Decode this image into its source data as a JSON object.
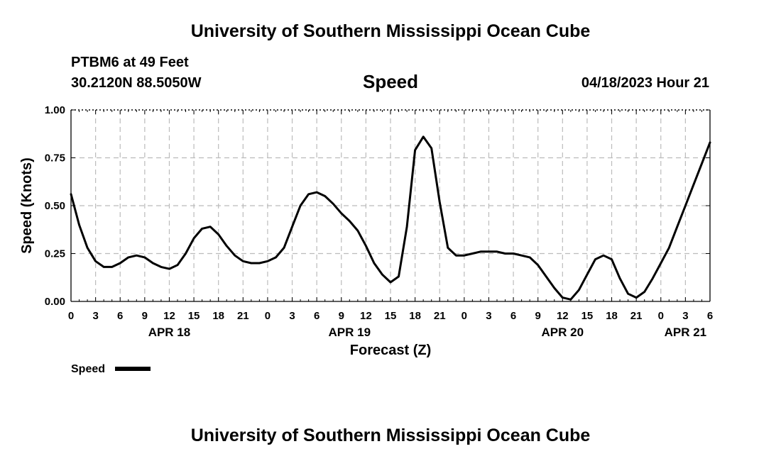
{
  "header": {
    "title": "University of Southern Mississippi Ocean Cube",
    "station": "PTBM6 at 49 Feet",
    "coordinates": "30.2120N  88.5050W",
    "datetime": "04/18/2023 Hour 21"
  },
  "footer": {
    "title": "University of Southern Mississippi Ocean Cube"
  },
  "chart_data": {
    "type": "line",
    "title": "Speed",
    "xlabel": "Forecast (Z)",
    "ylabel": "Speed (Knots)",
    "ylim": [
      0,
      1
    ],
    "xlim": [
      0,
      78
    ],
    "y_ticks": [
      "0.00",
      "0.25",
      "0.50",
      "0.75",
      "1.00"
    ],
    "y_tick_values": [
      0,
      0.25,
      0.5,
      0.75,
      1.0
    ],
    "x_ticks": [
      "0",
      "3",
      "6",
      "9",
      "12",
      "15",
      "18",
      "21",
      "0",
      "3",
      "6",
      "9",
      "12",
      "15",
      "18",
      "21",
      "0",
      "3",
      "6",
      "9",
      "12",
      "15",
      "18",
      "21",
      "0",
      "3",
      "6"
    ],
    "day_labels": [
      {
        "label": "APR 18",
        "hour": 12
      },
      {
        "label": "APR 19",
        "hour": 34
      },
      {
        "label": "APR 20",
        "hour": 60
      },
      {
        "label": "APR 21",
        "hour": 75
      }
    ],
    "grid": true,
    "legend_position": "bottom-left",
    "series": [
      {
        "name": "Speed",
        "color": "#000000",
        "x": [
          0,
          1,
          2,
          3,
          4,
          5,
          6,
          7,
          8,
          9,
          10,
          11,
          12,
          13,
          14,
          15,
          16,
          17,
          18,
          19,
          20,
          21,
          22,
          23,
          24,
          25,
          26,
          27,
          28,
          29,
          30,
          31,
          32,
          33,
          34,
          35,
          36,
          37,
          38,
          39,
          40,
          41,
          42,
          43,
          44,
          45,
          46,
          47,
          48,
          49,
          50,
          51,
          52,
          53,
          54,
          55,
          56,
          57,
          58,
          59,
          60,
          61,
          62,
          63,
          64,
          65,
          66,
          67,
          68,
          69,
          70,
          71,
          72,
          73,
          74,
          75,
          76,
          77,
          78
        ],
        "y": [
          0.56,
          0.4,
          0.28,
          0.21,
          0.18,
          0.18,
          0.2,
          0.23,
          0.24,
          0.23,
          0.2,
          0.18,
          0.17,
          0.19,
          0.25,
          0.33,
          0.38,
          0.39,
          0.35,
          0.29,
          0.24,
          0.21,
          0.2,
          0.2,
          0.21,
          0.23,
          0.28,
          0.39,
          0.5,
          0.56,
          0.57,
          0.55,
          0.51,
          0.46,
          0.42,
          0.37,
          0.29,
          0.2,
          0.14,
          0.1,
          0.13,
          0.39,
          0.79,
          0.86,
          0.8,
          0.52,
          0.28,
          0.24,
          0.24,
          0.25,
          0.26,
          0.26,
          0.26,
          0.25,
          0.25,
          0.24,
          0.23,
          0.19,
          0.13,
          0.07,
          0.02,
          0.01,
          0.06,
          0.14,
          0.22,
          0.24,
          0.22,
          0.12,
          0.04,
          0.02,
          0.05,
          0.12,
          0.2,
          0.28,
          0.39,
          0.5,
          0.61,
          0.72,
          0.83
        ]
      }
    ]
  }
}
